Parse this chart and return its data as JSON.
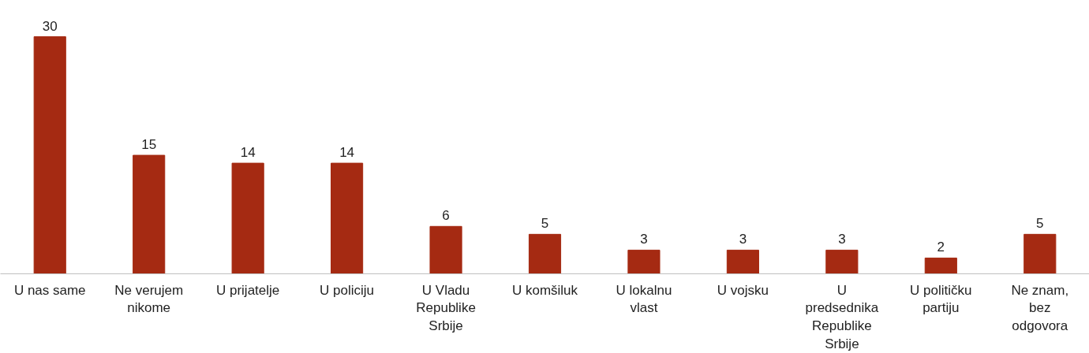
{
  "chart_data": {
    "type": "bar",
    "categories": [
      "U nas same",
      "Ne verujem\nnikome",
      "U prijatelje",
      "U policiju",
      "U Vladu\nRepublike\nSrbije",
      "U komšiluk",
      "U lokalnu\nvlast",
      "U vojsku",
      "U\npredsednika\nRepublike\nSrbije",
      "U političku\npartiju",
      "Ne znam,\nbez\nodgovora"
    ],
    "values": [
      30,
      15,
      14,
      14,
      6,
      5,
      3,
      3,
      3,
      2,
      5
    ],
    "color": "#a52a12",
    "data_labels": true
  }
}
